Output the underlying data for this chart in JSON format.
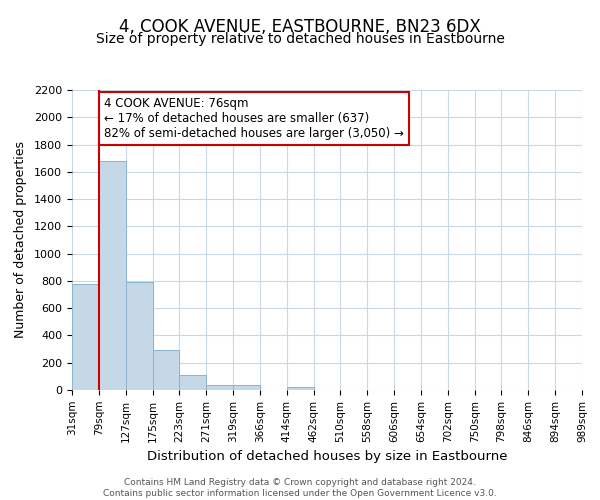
{
  "title": "4, COOK AVENUE, EASTBOURNE, BN23 6DX",
  "subtitle": "Size of property relative to detached houses in Eastbourne",
  "bar_values": [
    780,
    1680,
    790,
    295,
    110,
    35,
    35,
    0,
    20,
    0,
    0,
    0,
    0,
    0,
    0,
    0,
    0,
    0,
    0
  ],
  "bar_labels": [
    "31sqm",
    "79sqm",
    "127sqm",
    "175sqm",
    "223sqm",
    "271sqm",
    "319sqm",
    "366sqm",
    "414sqm",
    "462sqm",
    "510sqm",
    "558sqm",
    "606sqm",
    "654sqm",
    "702sqm",
    "750sqm",
    "798sqm",
    "846sqm",
    "894sqm",
    "989sqm"
  ],
  "xlabel": "Distribution of detached houses by size in Eastbourne",
  "ylabel": "Number of detached properties",
  "ylim": [
    0,
    2200
  ],
  "yticks": [
    0,
    200,
    400,
    600,
    800,
    1000,
    1200,
    1400,
    1600,
    1800,
    2000,
    2200
  ],
  "bar_color": "#c5d8e8",
  "bar_edge_color": "#8ab4cc",
  "annotation_title": "4 COOK AVENUE: 76sqm",
  "annotation_line1": "← 17% of detached houses are smaller (637)",
  "annotation_line2": "82% of semi-detached houses are larger (3,050) →",
  "annotation_box_color": "#ffffff",
  "annotation_box_edge": "#cc0000",
  "footer_line1": "Contains HM Land Registry data © Crown copyright and database right 2024.",
  "footer_line2": "Contains public sector information licensed under the Open Government Licence v3.0.",
  "background_color": "#ffffff",
  "grid_color": "#c8d8e8",
  "title_fontsize": 12,
  "subtitle_fontsize": 10
}
